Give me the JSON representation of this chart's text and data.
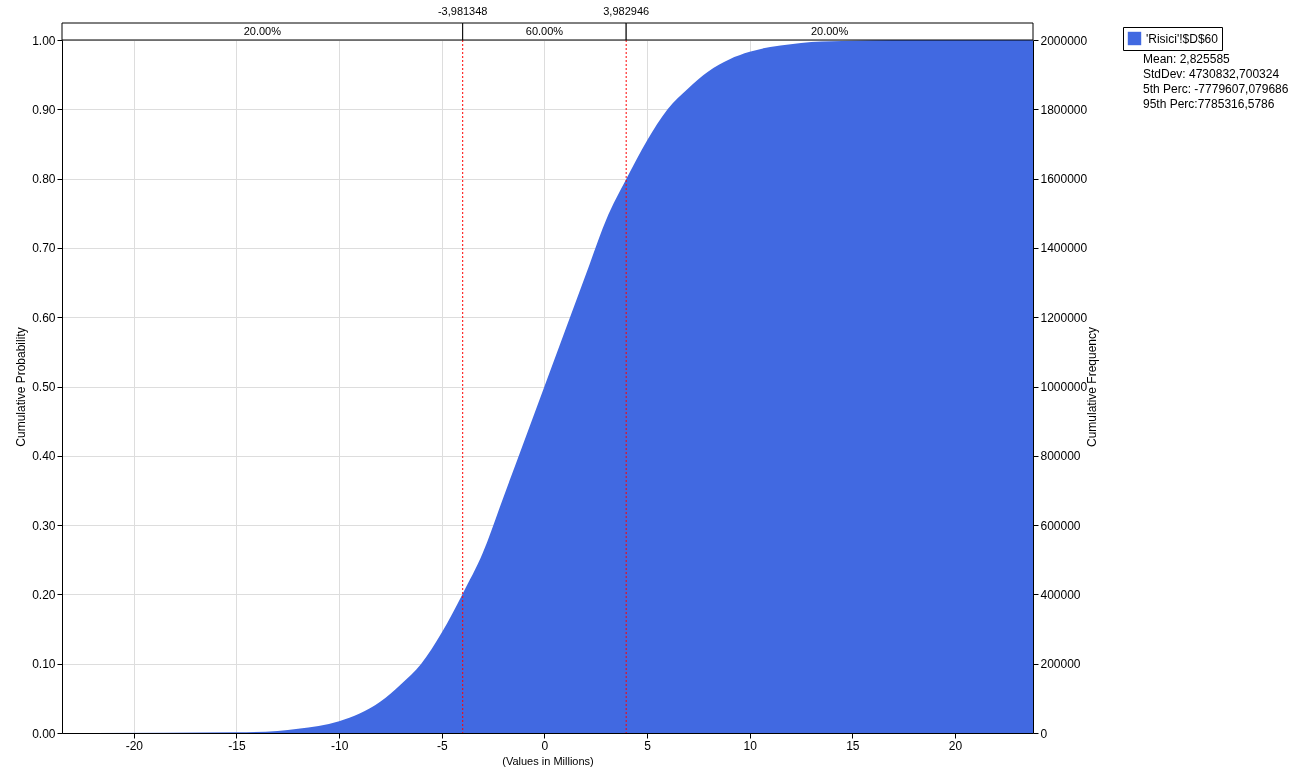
{
  "chart_data": {
    "type": "area",
    "xlabel": "(Values in Millions)",
    "ylabel": "Cumulative Probability",
    "y2label": "Cumulative Frequency",
    "x": [
      -22,
      -15,
      -13,
      -12,
      -11,
      -10,
      -9,
      -8,
      -7,
      -6,
      -5,
      -4,
      -3,
      -2,
      -1,
      0,
      1,
      2,
      3,
      4,
      5,
      6,
      7,
      8,
      9,
      10,
      11,
      12,
      13,
      15,
      17,
      23.8
    ],
    "series": [
      {
        "name": "'Risici'!$D$60",
        "color": "#4169e1",
        "values": [
          0,
          0.001,
          0.003,
          0.006,
          0.01,
          0.017,
          0.028,
          0.045,
          0.07,
          0.1,
          0.145,
          0.2,
          0.26,
          0.34,
          0.42,
          0.5,
          0.58,
          0.66,
          0.74,
          0.8,
          0.855,
          0.9,
          0.93,
          0.955,
          0.972,
          0.983,
          0.99,
          0.994,
          0.997,
          0.999,
          1.0,
          1.0
        ]
      }
    ],
    "xlim": [
      -23.5,
      23.8
    ],
    "xticks": [
      -20,
      -15,
      -10,
      -5,
      0,
      5,
      10,
      15,
      20
    ],
    "ylim": [
      0,
      1
    ],
    "yticks": [
      {
        "value": 0,
        "label": "0.00"
      },
      {
        "value": 0.1,
        "label": "0.10"
      },
      {
        "value": 0.2,
        "label": "0.20"
      },
      {
        "value": 0.3,
        "label": "0.30"
      },
      {
        "value": 0.4,
        "label": "0.40"
      },
      {
        "value": 0.5,
        "label": "0.50"
      },
      {
        "value": 0.6,
        "label": "0.60"
      },
      {
        "value": 0.7,
        "label": "0.70"
      },
      {
        "value": 0.8,
        "label": "0.80"
      },
      {
        "value": 0.9,
        "label": "0.90"
      },
      {
        "value": 1,
        "label": "1.00"
      }
    ],
    "y2lim": [
      0,
      2000000
    ],
    "y2ticks": [
      0,
      200000,
      400000,
      600000,
      800000,
      1000000,
      1200000,
      1400000,
      1600000,
      1800000,
      2000000
    ],
    "ref_lines": [
      {
        "axis": "x",
        "value": -3.981348,
        "label": "-3,981348",
        "color": "#ff0000",
        "line_style": "dotted"
      },
      {
        "axis": "x",
        "value": 3.982946,
        "label": "3,982946",
        "color": "#ff0000",
        "line_style": "dotted"
      }
    ],
    "annotations": [
      "20.00%",
      "60.00%",
      "20.00%",
      "Mean:       2,825585",
      "StdDev:   4730832,700324",
      "5th Perc: -7779607,079686",
      "95th Perc:7785316,5786"
    ],
    "grid": true,
    "legend": "top right"
  }
}
